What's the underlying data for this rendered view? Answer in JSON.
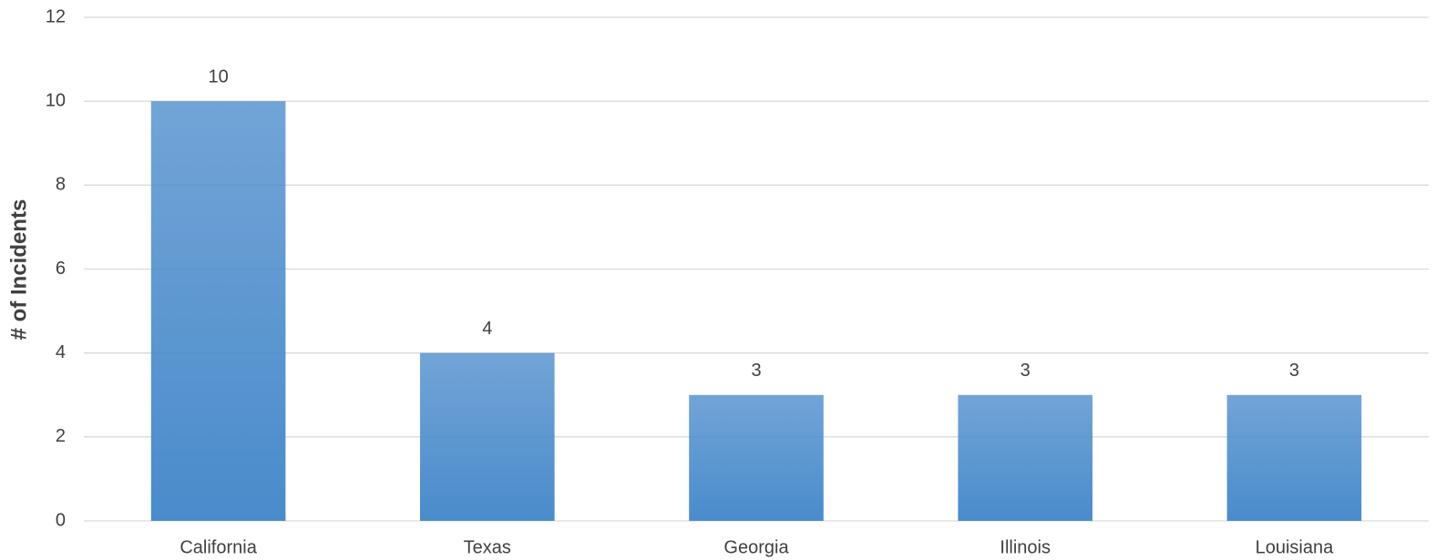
{
  "chart_data": {
    "type": "bar",
    "ylabel": "# of Incidents",
    "categories": [
      "California",
      "Texas",
      "Georgia",
      "Illinois",
      "Louisiana"
    ],
    "values": [
      10,
      4,
      3,
      3,
      3
    ],
    "color": "#4a8bcb",
    "ylim": [
      0,
      12
    ],
    "yticks": [
      0,
      2,
      4,
      6,
      8,
      10,
      12
    ],
    "grid": true,
    "data_labels": true
  }
}
